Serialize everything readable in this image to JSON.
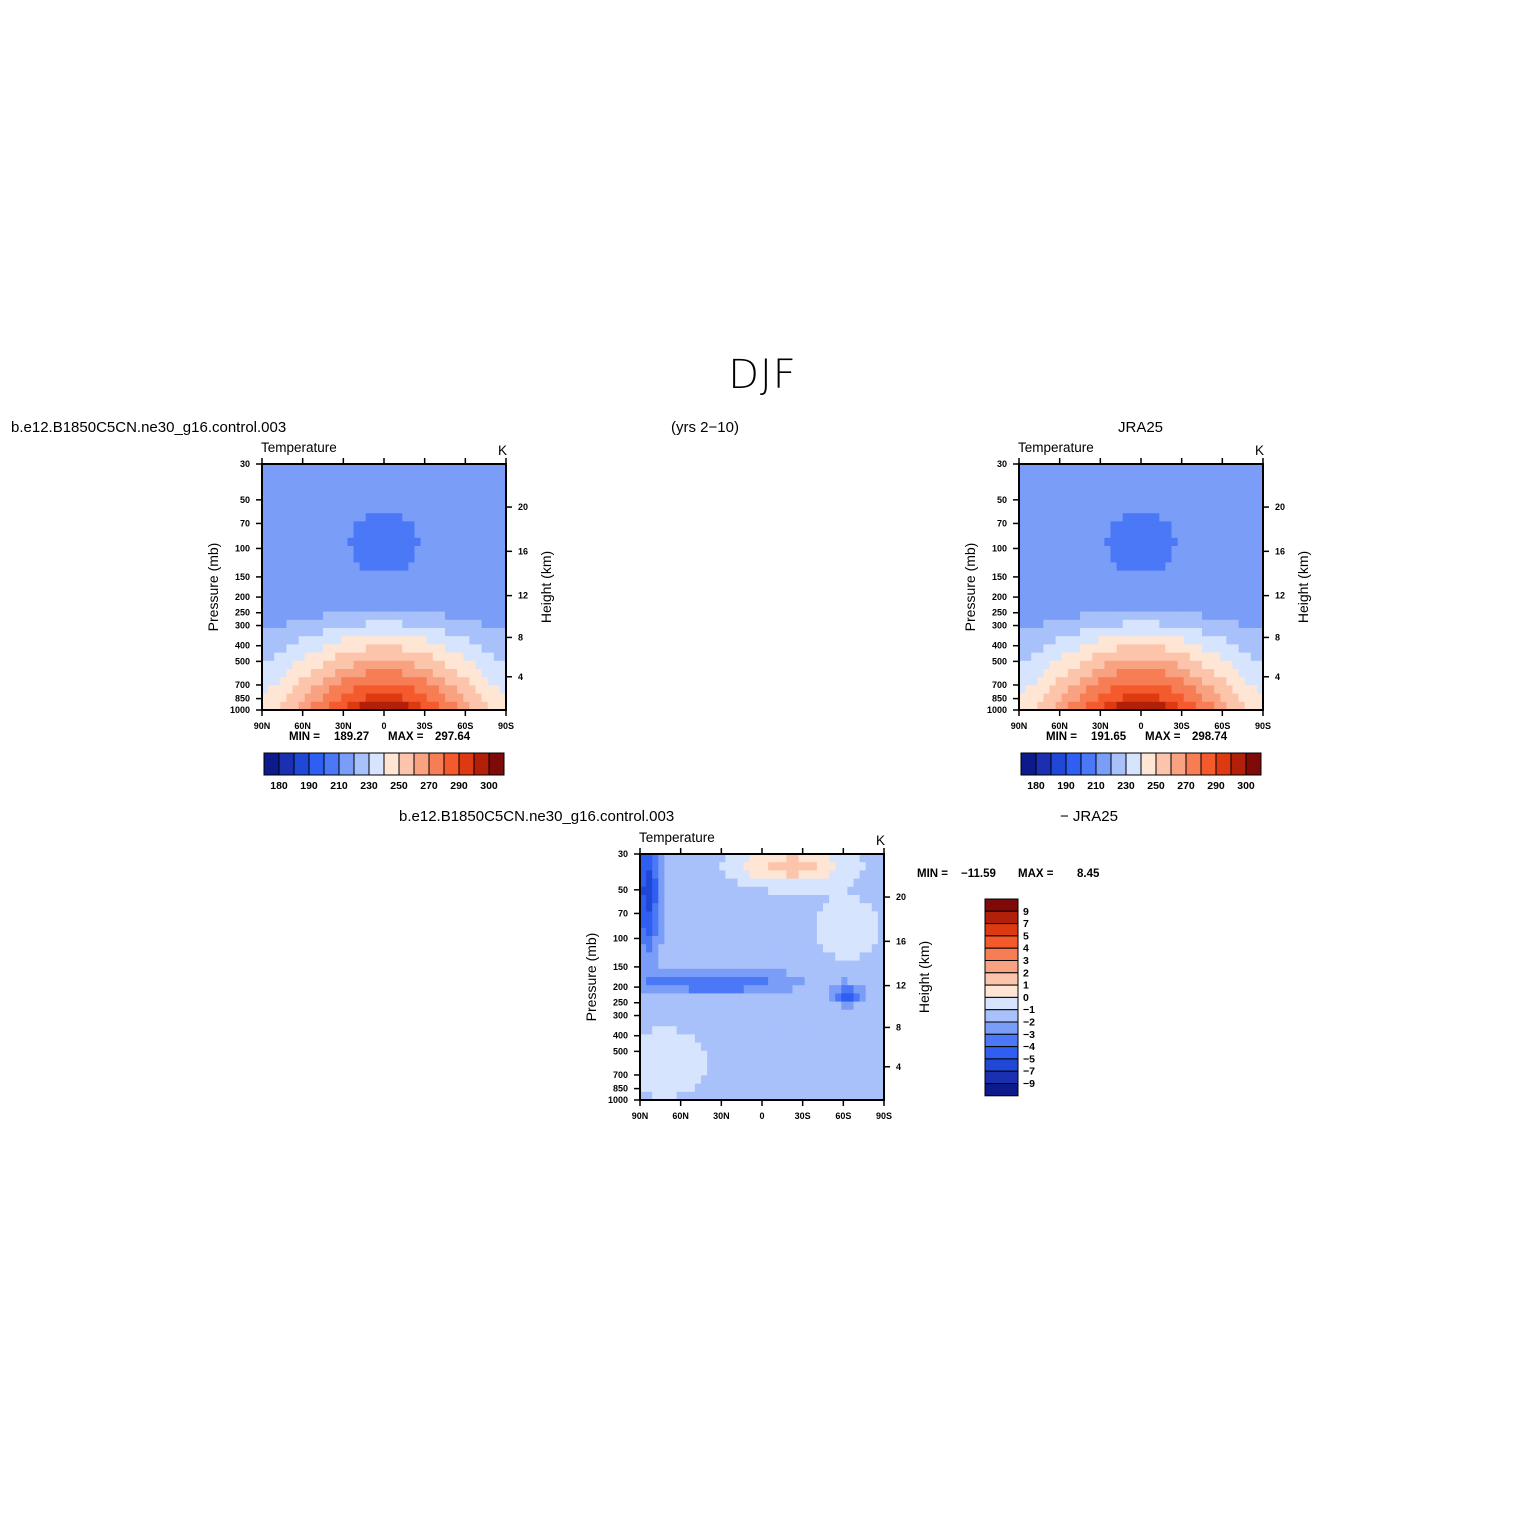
{
  "page": {
    "title": "DJF",
    "left_case": "b.e12.B1850C5CN.ne30_g16.control.003",
    "years": "(yrs 2−10)",
    "right_case": "JRA25",
    "diff_case": "b.e12.B1850C5CN.ne30_g16.control.003",
    "diff_ref": "− JRA25"
  },
  "chart_data": [
    {
      "type": "heatmap",
      "id": "model",
      "title_left": "Temperature",
      "title_right": "K",
      "ylabel": "Pressure (mb)",
      "ylabel_right": "Height (km)",
      "x_ticks": [
        "90N",
        "60N",
        "30N",
        "0",
        "30S",
        "60S",
        "90S"
      ],
      "y_ticks": [
        "30",
        "50",
        "70",
        "100",
        "150",
        "200",
        "250",
        "300",
        "400",
        "500",
        "700",
        "850",
        "1000"
      ],
      "height_ticks": [
        "20",
        "16",
        "12",
        "8",
        "4"
      ],
      "min": "189.27",
      "max": "297.64",
      "min_label": "MIN =",
      "max_label": "MAX =",
      "colorbar_labels": [
        "180",
        "190",
        "210",
        "230",
        "250",
        "270",
        "290",
        "300"
      ],
      "colors": [
        "#0d1a8c",
        "#1a30b0",
        "#2147d6",
        "#2e5ef2",
        "#4a78f7",
        "#7a9ef7",
        "#a8c1fb",
        "#d6e5fd",
        "#ffe6d4",
        "#fcc5ab",
        "#f9a282",
        "#f77d55",
        "#f45a2c",
        "#dd3a12",
        "#b3200a",
        "#7f0a0a"
      ]
    },
    {
      "type": "heatmap",
      "id": "obs",
      "title_left": "Temperature",
      "title_right": "K",
      "ylabel": "Pressure (mb)",
      "ylabel_right": "Height (km)",
      "x_ticks": [
        "90N",
        "60N",
        "30N",
        "0",
        "30S",
        "60S",
        "90S"
      ],
      "y_ticks": [
        "30",
        "50",
        "70",
        "100",
        "150",
        "200",
        "250",
        "300",
        "400",
        "500",
        "700",
        "850",
        "1000"
      ],
      "height_ticks": [
        "20",
        "16",
        "12",
        "8",
        "4"
      ],
      "min": "191.65",
      "max": "298.74",
      "min_label": "MIN =",
      "max_label": "MAX =",
      "colorbar_labels": [
        "180",
        "190",
        "210",
        "230",
        "250",
        "270",
        "290",
        "300"
      ]
    },
    {
      "type": "heatmap",
      "id": "diff",
      "title_left": "Temperature",
      "title_right": "K",
      "ylabel": "Pressure (mb)",
      "ylabel_right": "Height (km)",
      "x_ticks": [
        "90N",
        "60N",
        "30N",
        "0",
        "30S",
        "60S",
        "90S"
      ],
      "y_ticks": [
        "30",
        "50",
        "70",
        "100",
        "150",
        "200",
        "250",
        "300",
        "400",
        "500",
        "700",
        "850",
        "1000"
      ],
      "height_ticks": [
        "20",
        "16",
        "12",
        "8",
        "4"
      ],
      "min": "−11.59",
      "max": "8.45",
      "min_label": "MIN =",
      "max_label": "MAX =",
      "colorbar_labels": [
        "9",
        "7",
        "5",
        "4",
        "3",
        "2",
        "1",
        "0",
        "−1",
        "−2",
        "−3",
        "−4",
        "−5",
        "−7",
        "−9"
      ],
      "colors": [
        "#7f0a0a",
        "#b3200a",
        "#dd3a12",
        "#f45a2c",
        "#f77d55",
        "#f9a282",
        "#fcc5ab",
        "#ffe6d4",
        "#d6e5fd",
        "#a8c1fb",
        "#7a9ef7",
        "#4a78f7",
        "#2e5ef2",
        "#2147d6",
        "#1a30b0",
        "#0d1a8c"
      ]
    }
  ]
}
